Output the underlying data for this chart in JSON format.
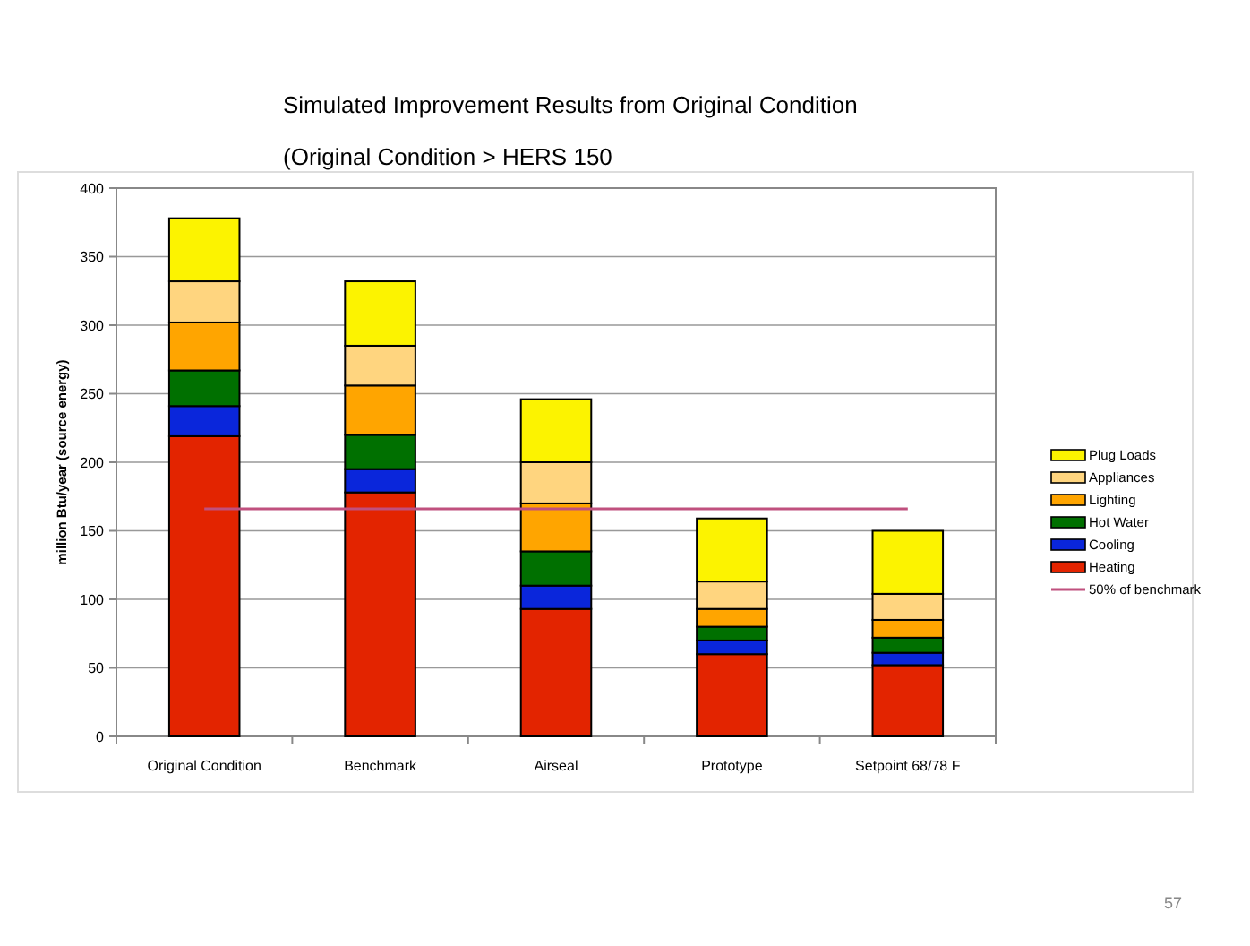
{
  "chart_data": {
    "type": "bar",
    "title": "Simulated Improvement Results from Original Condition",
    "subtitle": "(Original Condition > HERS 150",
    "ylabel": "million Btu/year (source energy)",
    "categories": [
      "Original Condition",
      "Benchmark",
      "Airseal",
      "Prototype",
      "Setpoint 68/78 F"
    ],
    "stacked": true,
    "ylim": [
      0,
      400
    ],
    "yticks": [
      0,
      50,
      100,
      150,
      200,
      250,
      300,
      350,
      400
    ],
    "grid": "y",
    "legend": "right",
    "annotations": [
      "57"
    ],
    "series": [
      {
        "name": "Heating",
        "color": "#e32400",
        "values": [
          219,
          178,
          93,
          60,
          52
        ]
      },
      {
        "name": "Cooling",
        "color": "#0a26db",
        "values": [
          22,
          17,
          17,
          10,
          9
        ]
      },
      {
        "name": "Hot Water",
        "color": "#007000",
        "values": [
          26,
          25,
          25,
          10,
          11
        ]
      },
      {
        "name": "Lighting",
        "color": "#ffa500",
        "values": [
          35,
          36,
          35,
          13,
          13
        ]
      },
      {
        "name": "Appliances",
        "color": "#ffd57f",
        "values": [
          30,
          29,
          30,
          20,
          19
        ]
      },
      {
        "name": "Plug Loads",
        "color": "#fcf300",
        "values": [
          46,
          47,
          46,
          46,
          46
        ]
      },
      {
        "name": "50% of benchmark",
        "type": "line",
        "color": "#c0507e",
        "values": [
          166,
          166,
          166,
          166,
          166
        ]
      }
    ]
  }
}
